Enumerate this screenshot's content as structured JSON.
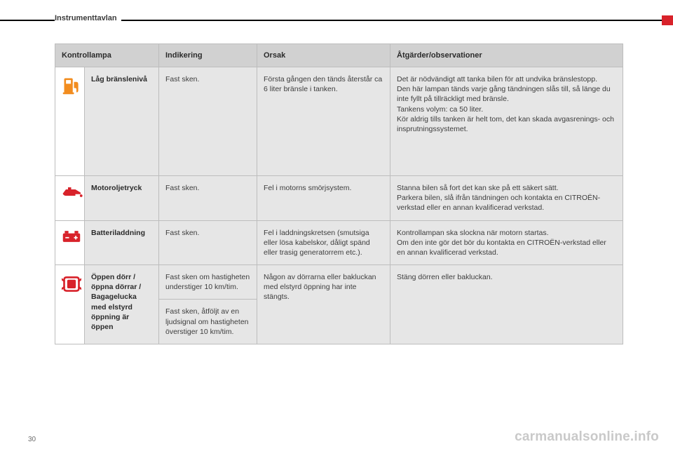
{
  "page": {
    "section_title": "Instrumenttavlan",
    "page_number": "30",
    "watermark": "carmanualsonline.info"
  },
  "colors": {
    "header_bg": "#d1d1d1",
    "cell_bg": "#e6e6e6",
    "icon_cell_bg": "#ffffff",
    "border": "#bdbdbd",
    "topbar": "#000000",
    "accent": "#d8222a",
    "text": "#3d3d3d",
    "heading_text": "#2b2b2b",
    "watermark_color": "#c9c9c9",
    "icon_fuel": "#f28c1e",
    "icon_oil": "#d8222a",
    "icon_batt": "#d8222a",
    "icon_door": "#d8222a"
  },
  "table": {
    "headers": {
      "lamp": "Kontrollampa",
      "indication": "Indikering",
      "cause": "Orsak",
      "actions": "Åtgärder/observationer"
    },
    "rows": [
      {
        "icon": "fuel",
        "name": "Låg bränslenivå",
        "indication": "Fast sken.",
        "cause": "Första gången den tänds återstår ca 6 liter bränsle i tanken.",
        "actions": "Det är nödvändigt att tanka bilen för att undvika bränslestopp.\nDen här lampan tänds varje gång tändningen slås till, så länge du inte fyllt på tillräckligt med bränsle.\nTankens volym: ca 50 liter.\nKör aldrig tills tanken är helt tom, det kan skada avgasrenings- och insprutningssystemet."
      },
      {
        "icon": "oil",
        "name": "Motoroljetryck",
        "indication": "Fast sken.",
        "cause": "Fel i motorns smörjsystem.",
        "actions": "Stanna bilen så fort det kan ske på ett säkert sätt.\nParkera bilen, slå ifrån tändningen och kontakta en CITROËN-verkstad eller en annan kvalificerad verkstad."
      },
      {
        "icon": "battery",
        "name": "Batteriladdning",
        "indication": "Fast sken.",
        "cause": "Fel i laddningskretsen (smutsiga eller lösa kabelskor, dåligt spänd eller trasig generatorrem etc.).",
        "actions": "Kontrollampan ska slockna när motorn startas.\nOm den inte gör det bör du kontakta en CITROËN-verkstad eller en annan kvalificerad verkstad."
      },
      {
        "icon": "door",
        "name": "Öppen dörr / öppna dörrar / Bagagelucka med elstyrd öppning är öppen",
        "indication_line1": "Fast sken om hastigheten understiger 10 km/tim.",
        "indication_line2": "Fast sken, åtföljt av en ljudsignal om hastigheten överstiger 10 km/tim.",
        "cause": "Någon av dörrarna eller bakluckan med elstyrd öppning har inte stängts.",
        "actions": "Stäng dörren eller bakluckan."
      }
    ]
  },
  "fontsizes": {
    "section_title_pt": 11,
    "header_pt": 11,
    "cell_pt": 10.5,
    "watermark_pt": 19,
    "page_number_pt": 10
  }
}
